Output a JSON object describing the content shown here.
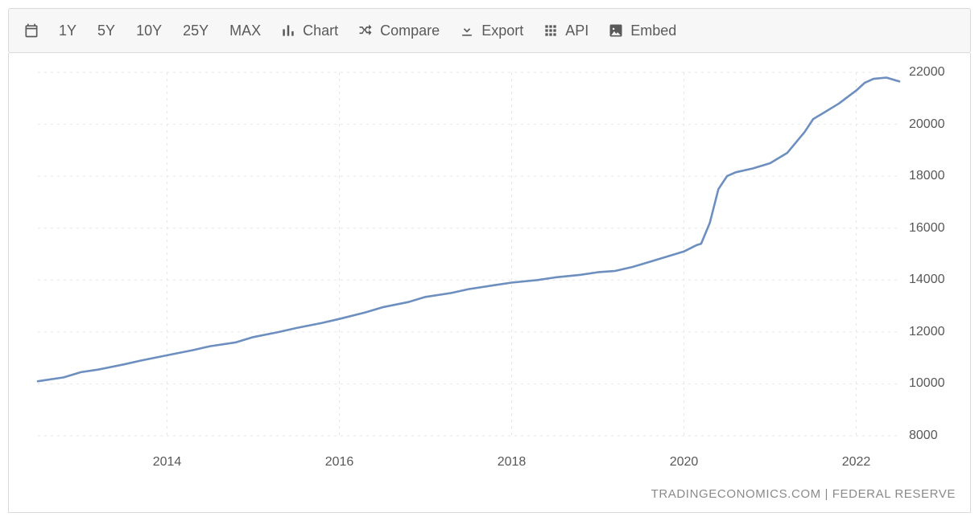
{
  "toolbar": {
    "ranges": [
      "1Y",
      "5Y",
      "10Y",
      "25Y",
      "MAX"
    ],
    "actions": {
      "chart": {
        "label": "Chart",
        "icon": "bar-chart-icon"
      },
      "compare": {
        "label": "Compare",
        "icon": "shuffle-icon"
      },
      "export": {
        "label": "Export",
        "icon": "download-icon"
      },
      "api": {
        "label": "API",
        "icon": "grid-icon"
      },
      "embed": {
        "label": "Embed",
        "icon": "image-icon"
      }
    }
  },
  "chart": {
    "type": "line",
    "background_color": "#ffffff",
    "grid_color": "#e6e6e6",
    "grid_dash": "3 5",
    "axis_label_color": "#585858",
    "axis_label_fontsize": 16,
    "line_color": "#6d8fbf",
    "line_width": 2.6,
    "x": {
      "min": 2012.5,
      "max": 2022.5
    },
    "y": {
      "min": 8000,
      "max": 22000,
      "step": 2000
    },
    "x_ticks": [
      2014,
      2016,
      2018,
      2020,
      2022
    ],
    "y_ticks": [
      8000,
      10000,
      12000,
      14000,
      16000,
      18000,
      20000,
      22000
    ],
    "series": [
      [
        2012.5,
        10100
      ],
      [
        2012.8,
        10250
      ],
      [
        2013.0,
        10450
      ],
      [
        2013.2,
        10550
      ],
      [
        2013.5,
        10750
      ],
      [
        2013.7,
        10900
      ],
      [
        2014.0,
        11100
      ],
      [
        2014.3,
        11300
      ],
      [
        2014.5,
        11450
      ],
      [
        2014.8,
        11600
      ],
      [
        2015.0,
        11800
      ],
      [
        2015.3,
        12000
      ],
      [
        2015.5,
        12150
      ],
      [
        2015.8,
        12350
      ],
      [
        2016.0,
        12500
      ],
      [
        2016.3,
        12750
      ],
      [
        2016.5,
        12950
      ],
      [
        2016.8,
        13150
      ],
      [
        2017.0,
        13350
      ],
      [
        2017.3,
        13500
      ],
      [
        2017.5,
        13650
      ],
      [
        2017.8,
        13800
      ],
      [
        2018.0,
        13900
      ],
      [
        2018.3,
        14000
      ],
      [
        2018.5,
        14100
      ],
      [
        2018.8,
        14200
      ],
      [
        2019.0,
        14300
      ],
      [
        2019.2,
        14350
      ],
      [
        2019.4,
        14500
      ],
      [
        2019.6,
        14700
      ],
      [
        2019.8,
        14900
      ],
      [
        2020.0,
        15100
      ],
      [
        2020.15,
        15350
      ],
      [
        2020.2,
        15400
      ],
      [
        2020.3,
        16200
      ],
      [
        2020.4,
        17500
      ],
      [
        2020.5,
        18000
      ],
      [
        2020.6,
        18150
      ],
      [
        2020.8,
        18300
      ],
      [
        2021.0,
        18500
      ],
      [
        2021.2,
        18900
      ],
      [
        2021.4,
        19700
      ],
      [
        2021.5,
        20200
      ],
      [
        2021.6,
        20400
      ],
      [
        2021.8,
        20800
      ],
      [
        2022.0,
        21300
      ],
      [
        2022.1,
        21600
      ],
      [
        2022.2,
        21750
      ],
      [
        2022.35,
        21800
      ],
      [
        2022.5,
        21650
      ]
    ]
  },
  "attribution": "TRADINGECONOMICS.COM | FEDERAL RESERVE"
}
